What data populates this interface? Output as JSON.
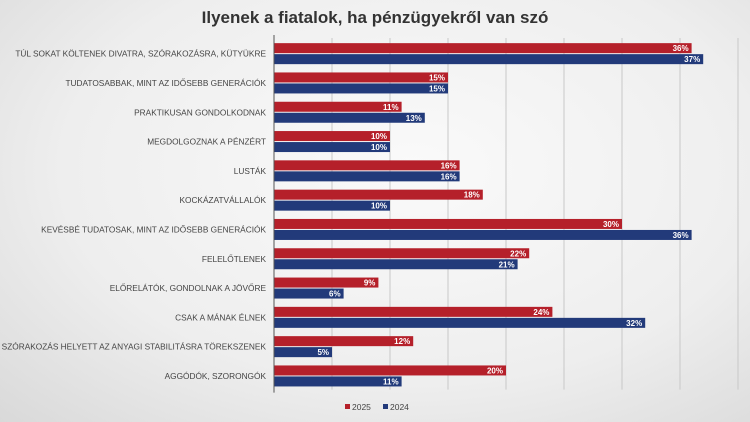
{
  "chart_data": {
    "type": "bar",
    "orientation": "horizontal",
    "title": "Ilyenek a fiatalok, ha pénzügyekről van szó",
    "categories": [
      "TÚL SOKAT KÖLTENEK DIVATRA, SZÓRAKOZÁSRA, KÜTYÜKRE",
      "TUDATOSABBAK, MINT AZ IDŐSEBB GENERÁCIÓK",
      "PRAKTIKUSAN GONDOLKODNAK",
      "MEGDOLGOZNAK A PÉNZÉRT",
      "LUSTÁK",
      "KOCKÁZATVÁLLALÓK",
      "KEVÉSBÉ TUDATOSAK, MINT AZ IDŐSEBB GENERÁCIÓK",
      "FELELŐTLENEK",
      "ELŐRELÁTÓK, GONDOLNAK A JÖVŐRE",
      "CSAK A MÁNAK ÉLNEK",
      "SZÓRAKOZÁS HELYETT AZ ANYAGI STABILITÁSRA TÖREKSZENEK",
      "AGGÓDÓK, SZORONGÓK"
    ],
    "series": [
      {
        "name": "2025",
        "color": "#b5202a",
        "values": [
          36,
          15,
          11,
          10,
          16,
          18,
          30,
          22,
          9,
          24,
          12,
          20
        ]
      },
      {
        "name": "2024",
        "color": "#223a7a",
        "values": [
          37,
          15,
          13,
          10,
          16,
          10,
          36,
          21,
          6,
          32,
          5,
          11
        ]
      }
    ],
    "value_suffix": "%",
    "xlim": [
      0,
      40
    ],
    "grid": true,
    "legend": "bottom"
  }
}
